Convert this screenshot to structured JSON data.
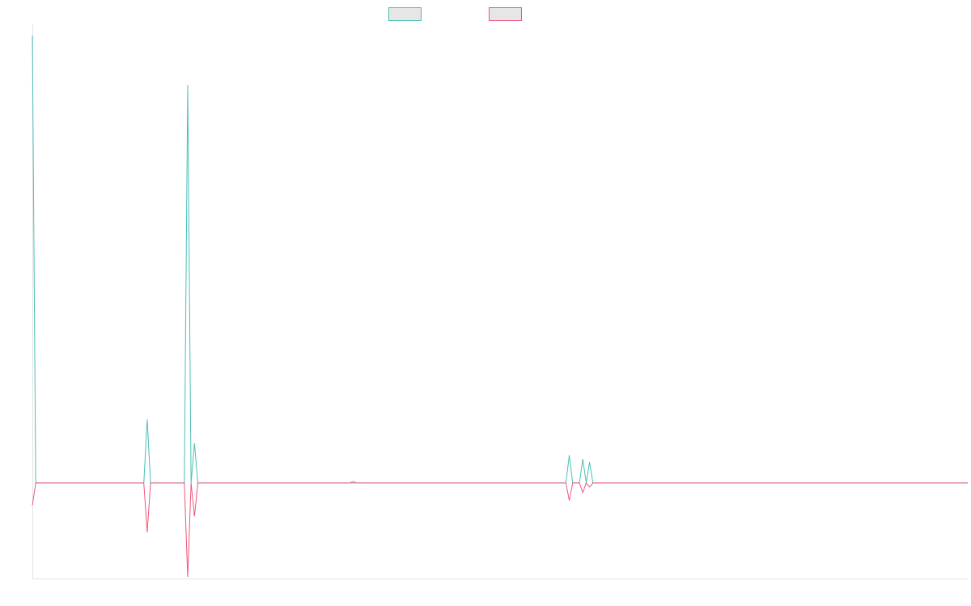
{
  "chart_data": {
    "type": "line",
    "title": "",
    "xlabel": "",
    "ylabel": "",
    "grid": false,
    "legend_position": "top-center",
    "x": [
      0,
      1,
      2,
      3,
      4,
      5,
      6,
      7,
      8,
      9,
      10,
      11,
      12,
      13,
      14,
      15,
      16,
      17,
      18,
      19,
      20,
      21,
      22,
      23,
      24,
      25,
      26,
      27,
      28,
      29,
      30,
      31,
      32,
      33,
      34,
      35,
      36,
      37,
      38,
      39,
      40,
      41,
      42,
      43,
      44,
      45,
      46,
      47,
      48,
      49,
      50,
      51,
      52,
      53,
      54,
      55,
      56,
      57,
      58,
      59,
      60,
      61,
      62,
      63,
      64,
      65,
      66,
      67,
      68,
      69,
      70,
      71,
      72,
      73,
      74,
      75,
      76,
      77,
      78,
      79,
      80,
      81,
      82,
      83,
      84,
      85,
      86,
      87,
      88,
      89,
      90,
      91,
      92,
      93,
      94,
      95,
      96,
      97,
      98,
      99,
      100,
      101,
      102,
      103,
      104,
      105,
      106,
      107,
      108,
      109,
      110,
      111,
      112,
      113,
      114,
      115,
      116,
      117,
      118,
      119,
      120,
      121,
      122,
      123,
      124,
      125,
      126,
      127,
      128,
      129,
      130,
      131,
      132,
      133,
      134,
      135,
      136,
      137,
      138,
      139,
      140,
      141,
      142,
      143,
      144,
      145,
      146,
      147,
      148,
      149,
      150,
      151,
      152,
      153,
      154,
      155,
      156,
      157,
      158,
      159,
      160,
      161,
      162,
      163,
      164,
      165,
      166,
      167,
      168,
      169,
      170,
      171,
      172,
      173,
      174,
      175,
      176,
      177,
      178,
      179,
      180,
      181,
      182,
      183,
      184,
      185,
      186,
      187,
      188,
      189,
      190,
      191,
      192,
      193,
      194,
      195,
      196,
      197,
      198,
      199,
      200,
      201,
      202,
      203,
      204,
      205,
      206,
      207,
      208,
      209,
      210,
      211,
      212,
      213,
      214,
      215,
      216,
      217,
      218,
      219,
      220,
      221,
      222,
      223,
      224,
      225,
      226,
      227,
      228,
      229,
      230,
      231,
      232,
      233,
      234,
      235,
      236,
      237,
      238,
      239,
      240,
      241,
      242,
      243,
      244,
      245,
      246,
      247,
      248,
      249,
      250,
      251,
      252,
      253,
      254,
      255,
      256,
      257,
      258,
      259,
      260,
      261,
      262,
      263,
      264,
      265,
      266,
      267,
      268,
      269,
      270,
      271,
      272,
      273,
      274,
      275,
      276,
      277
    ],
    "ylim": [
      -120,
      570
    ],
    "series": [
      {
        "color": "#4bbfb8",
        "peaks": {
          "0": 562,
          "34": 80,
          "46": 500,
          "48": 50,
          "95": 2,
          "159": 35,
          "163": 30,
          "165": 26
        }
      },
      {
        "color": "#f0567c",
        "peaks": {
          "0": -28,
          "34": -62,
          "46": -118,
          "48": -42,
          "95": 0,
          "159": -22,
          "163": -12,
          "165": -5
        }
      }
    ],
    "legend": [
      {
        "fill": "#e6e6e6",
        "stroke": "#4bbfb8"
      },
      {
        "fill": "#e6e6e6",
        "stroke": "#f0567c"
      }
    ]
  }
}
